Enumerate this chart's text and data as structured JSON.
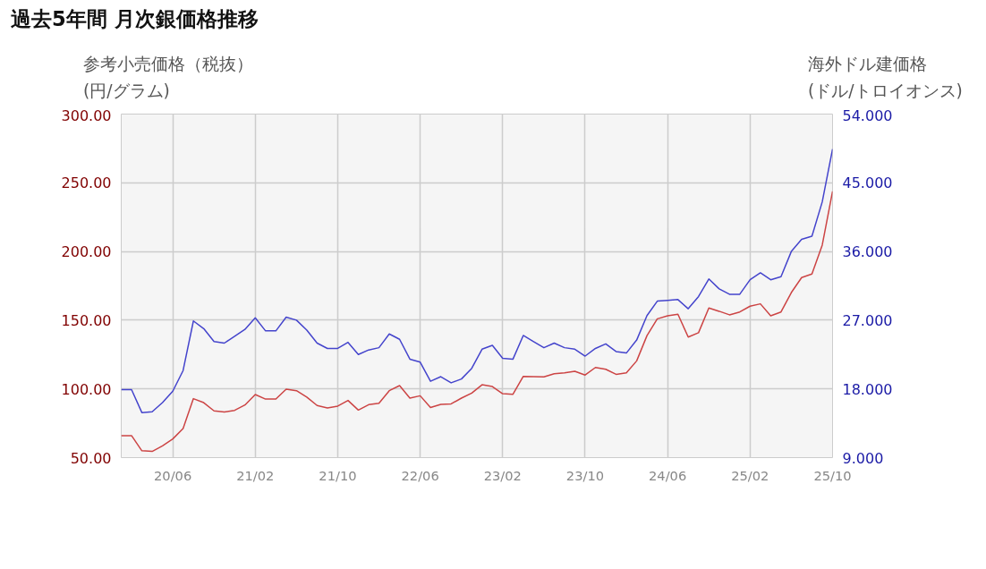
{
  "chart_data": {
    "type": "line",
    "title": "過去5年間 月次銀価格推移",
    "ylabel": "参考小売価格（税抜）\n(円/グラム)",
    "y2label": "海外ドル建価格\n(ドル/トロイオンス)",
    "categories": [
      null,
      null,
      null,
      null,
      null,
      "20/06",
      null,
      null,
      null,
      null,
      null,
      null,
      null,
      "21/02",
      null,
      null,
      null,
      null,
      null,
      null,
      null,
      "21/10",
      null,
      null,
      null,
      null,
      null,
      null,
      null,
      "22/06",
      null,
      null,
      null,
      null,
      null,
      null,
      null,
      "23/02",
      null,
      null,
      null,
      null,
      null,
      null,
      null,
      "23/10",
      null,
      null,
      null,
      null,
      null,
      null,
      null,
      "24/06",
      null,
      null,
      null,
      null,
      null,
      null,
      null,
      "25/02",
      null,
      null,
      null,
      null,
      null,
      null,
      null,
      "25/10"
    ],
    "series": [
      {
        "color": "#cc4444",
        "values": [
          66,
          66,
          55,
          54.5,
          58.6,
          63.6,
          71.2,
          92.9,
          90,
          84,
          83.2,
          84.4,
          88.3,
          95.9,
          92.6,
          92.6,
          99.8,
          98.7,
          94,
          87.9,
          86.2,
          87.5,
          91.6,
          84.6,
          88.5,
          89.6,
          98.7,
          102.4,
          93.3,
          95,
          86.4,
          88.7,
          89.1,
          93.3,
          97,
          103,
          101.7,
          96.5,
          96.1,
          109.1,
          109,
          108.7,
          111,
          111.7,
          112.8,
          110.1,
          115.6,
          114.3,
          110.6,
          111.7,
          120.4,
          138.8,
          151,
          153.2,
          154.3,
          137.7,
          140.9,
          158.9,
          156.5,
          153.9,
          156,
          160.2,
          161.9,
          153.2,
          156,
          170.1,
          181,
          183.6,
          204.7,
          243.7
        ]
      },
      {
        "color": "#4444cc",
        "axis": "y2",
        "values": [
          17.9,
          17.9,
          14.9,
          15.0,
          16.2,
          17.7,
          20.4,
          26.9,
          25.9,
          24.2,
          24.0,
          24.9,
          25.8,
          27.3,
          25.6,
          25.6,
          27.4,
          27.0,
          25.7,
          24.0,
          23.3,
          23.3,
          24.1,
          22.5,
          23.1,
          23.4,
          25.2,
          24.5,
          21.9,
          21.5,
          19.0,
          19.6,
          18.8,
          19.3,
          20.7,
          23.2,
          23.7,
          22.0,
          21.9,
          25.0,
          24.2,
          23.4,
          24.0,
          23.4,
          23.2,
          22.3,
          23.3,
          23.9,
          22.9,
          22.7,
          24.4,
          27.6,
          29.5,
          29.6,
          29.7,
          28.5,
          30.1,
          32.4,
          31.1,
          30.4,
          30.4,
          32.3,
          33.2,
          32.3,
          32.7,
          36.0,
          37.6,
          38.0,
          42.5,
          49.4
        ]
      }
    ],
    "ylim": [
      50,
      300
    ],
    "yticks": [
      {
        "value": 50,
        "label": "50.00"
      },
      {
        "value": 100,
        "label": "100.00"
      },
      {
        "value": 150,
        "label": "150.00"
      },
      {
        "value": 200,
        "label": "200.00"
      },
      {
        "value": 250,
        "label": "250.00"
      },
      {
        "value": 300,
        "label": "300.00"
      }
    ],
    "y2lim": [
      9,
      54
    ],
    "y2ticks": [
      {
        "value": 9,
        "label": "9.000"
      },
      {
        "value": 18,
        "label": "18.000"
      },
      {
        "value": 27,
        "label": "27.000"
      },
      {
        "value": 36,
        "label": "36.000"
      },
      {
        "value": 45,
        "label": "45.000"
      },
      {
        "value": 54,
        "label": "54.000"
      }
    ],
    "grid": true
  }
}
